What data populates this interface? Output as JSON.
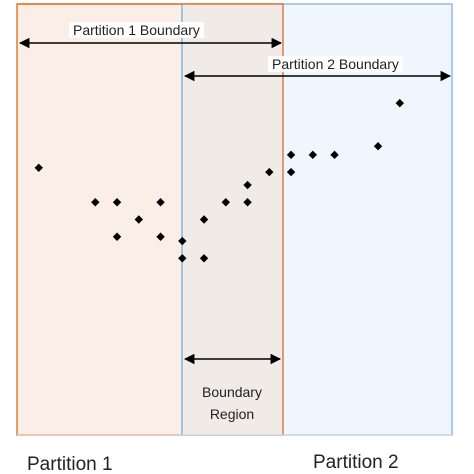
{
  "labels": {
    "partition1_boundary": "Partition 1 Boundary",
    "partition2_boundary": "Partition 2 Boundary",
    "boundary_region_line1": "Boundary",
    "boundary_region_line2": "Region",
    "partition1": "Partition 1",
    "partition2": "Partition 2"
  },
  "colors": {
    "partition1_fill": "#fbeee6",
    "partition1_stroke": "#e07b39",
    "partition2_fill": "#f0f6fd",
    "partition2_stroke": "#8fbbe8",
    "overlap_fill": "#f1ebe7",
    "point": "#000000",
    "arrow": "#000000"
  },
  "points": [
    [
      0.05,
      0.62
    ],
    [
      0.18,
      0.54
    ],
    [
      0.23,
      0.54
    ],
    [
      0.28,
      0.5
    ],
    [
      0.33,
      0.54
    ],
    [
      0.23,
      0.46
    ],
    [
      0.33,
      0.46
    ],
    [
      0.38,
      0.45
    ],
    [
      0.38,
      0.41
    ],
    [
      0.43,
      0.41
    ],
    [
      0.43,
      0.5
    ],
    [
      0.48,
      0.54
    ],
    [
      0.53,
      0.54
    ],
    [
      0.53,
      0.58
    ],
    [
      0.58,
      0.61
    ],
    [
      0.63,
      0.61
    ],
    [
      0.63,
      0.65
    ],
    [
      0.68,
      0.65
    ],
    [
      0.73,
      0.65
    ],
    [
      0.83,
      0.67
    ],
    [
      0.88,
      0.77
    ]
  ]
}
